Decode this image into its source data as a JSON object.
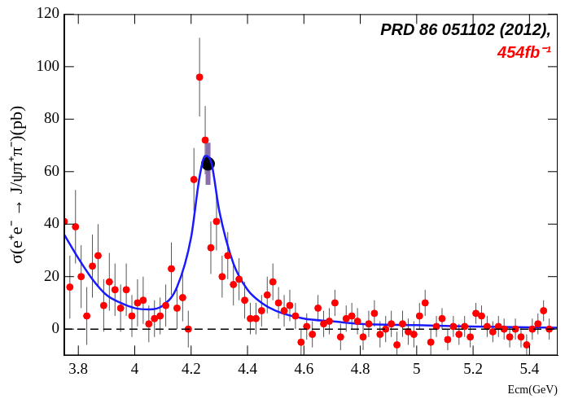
{
  "chart_data": {
    "type": "scatter",
    "annotations": [
      "PRD 86 051102 (2012),",
      "454fb⁻¹"
    ],
    "x_label": "Ecm(GeV)",
    "y_label": "σ(e⁺e⁻ → J/ψπ⁺π⁻)(pb)",
    "xlim": [
      3.75,
      5.5
    ],
    "xticks": [
      3.8,
      4,
      4.2,
      4.4,
      4.6,
      4.8,
      5,
      5.2,
      5.4
    ],
    "ylim": [
      -10,
      120
    ],
    "yticks": [
      0,
      20,
      40,
      60,
      80,
      100,
      120
    ],
    "grid": false,
    "series": [
      {
        "type": "line",
        "color": "#000000",
        "line_style": "dashed",
        "marker": "none",
        "x": [
          3.75,
          5.5
        ],
        "values": [
          0,
          0
        ]
      },
      {
        "type": "scatter",
        "color": "#ff0000",
        "marker": "circle",
        "line_style": "none",
        "x": [
          3.75,
          3.77,
          3.79,
          3.81,
          3.83,
          3.85,
          3.87,
          3.89,
          3.91,
          3.93,
          3.95,
          3.97,
          3.99,
          4.01,
          4.03,
          4.05,
          4.07,
          4.09,
          4.11,
          4.13,
          4.15,
          4.17,
          4.19,
          4.21,
          4.23,
          4.25,
          4.27,
          4.29,
          4.31,
          4.33,
          4.35,
          4.37,
          4.39,
          4.41,
          4.43,
          4.45,
          4.47,
          4.49,
          4.51,
          4.53,
          4.55,
          4.57,
          4.59,
          4.61,
          4.63,
          4.65,
          4.67,
          4.69,
          4.71,
          4.73,
          4.75,
          4.77,
          4.79,
          4.81,
          4.83,
          4.85,
          4.87,
          4.89,
          4.91,
          4.93,
          4.95,
          4.97,
          4.99,
          5.01,
          5.03,
          5.05,
          5.07,
          5.09,
          5.11,
          5.13,
          5.15,
          5.17,
          5.19,
          5.21,
          5.23,
          5.25,
          5.27,
          5.29,
          5.31,
          5.33,
          5.35,
          5.37,
          5.39,
          5.41,
          5.43,
          5.45,
          5.47
        ],
        "values": [
          41,
          16,
          39,
          20,
          5,
          24,
          28,
          9,
          18,
          15,
          8,
          15,
          5,
          10,
          11,
          2,
          4,
          5,
          9,
          23,
          8,
          12,
          0,
          57,
          96,
          72,
          31,
          41,
          20,
          28,
          17,
          19,
          11,
          4,
          4,
          7,
          13,
          18,
          10,
          7,
          9,
          5,
          -5,
          1,
          -2,
          8,
          2,
          3,
          10,
          -3,
          4,
          5,
          3,
          -3,
          2,
          6,
          -2,
          0,
          2,
          -6,
          2,
          -1,
          -2,
          5,
          10,
          -5,
          1,
          4,
          -4,
          1,
          -2,
          1,
          -3,
          6,
          5,
          1,
          -1,
          1,
          0,
          -3,
          0,
          -3,
          -6,
          0,
          2,
          7,
          0
        ],
        "errors": [
          15,
          12,
          14,
          12,
          11,
          12,
          12,
          10,
          11,
          10,
          9,
          10,
          8,
          9,
          9,
          7,
          7,
          7,
          8,
          10,
          8,
          9,
          7,
          12,
          15,
          13,
          10,
          11,
          8,
          9,
          8,
          8,
          7,
          6,
          6,
          6,
          7,
          7,
          6,
          6,
          6,
          5,
          5,
          5,
          5,
          5,
          5,
          5,
          5,
          5,
          5,
          5,
          5,
          5,
          5,
          5,
          5,
          5,
          5,
          5,
          5,
          5,
          5,
          5,
          5,
          5,
          4,
          4,
          4,
          4,
          4,
          4,
          4,
          4,
          4,
          4,
          4,
          4,
          4,
          4,
          4,
          4,
          4,
          4,
          4,
          4,
          4
        ]
      },
      {
        "type": "line",
        "color": "#1a1aff",
        "line_style": "solid",
        "marker": "none",
        "x": [
          3.75,
          3.8,
          3.85,
          3.9,
          3.95,
          4.0,
          4.05,
          4.1,
          4.15,
          4.2,
          4.23,
          4.25,
          4.27,
          4.3,
          4.35,
          4.4,
          4.45,
          4.5,
          4.6,
          4.7,
          4.8,
          5.0,
          5.2,
          5.5
        ],
        "values": [
          36,
          27,
          19,
          13,
          10,
          8,
          7.5,
          9,
          16,
          35,
          58,
          66,
          64,
          45,
          25,
          15,
          10,
          7,
          4,
          3,
          2,
          1.5,
          1,
          0.5
        ]
      },
      {
        "type": "scatter",
        "color": "#000000",
        "marker": "circle",
        "line_style": "none",
        "x": [
          4.26
        ],
        "values": [
          63
        ],
        "errors": [
          8
        ]
      }
    ]
  }
}
